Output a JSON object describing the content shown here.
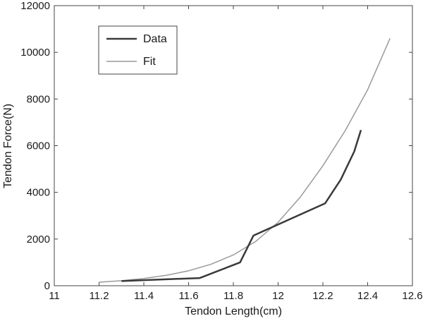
{
  "chart_data": {
    "type": "line",
    "xlabel": "Tendon Length(cm)",
    "ylabel": "Tendon Force(N)",
    "xlim": [
      11,
      12.6
    ],
    "ylim": [
      0,
      12000
    ],
    "x_ticks": [
      "11",
      "11.2",
      "11.4",
      "11.6",
      "11.8",
      "12",
      "12.2",
      "12.4",
      "12.6"
    ],
    "y_ticks": [
      "0",
      "2000",
      "4000",
      "6000",
      "8000",
      "10000",
      "12000"
    ],
    "grid": false,
    "legend_position": "top-left",
    "series": [
      {
        "name": "Data",
        "color": "#3a3a3a",
        "points": [
          [
            11.3,
            200
          ],
          [
            11.65,
            330
          ],
          [
            11.83,
            1000
          ],
          [
            11.89,
            2150
          ],
          [
            12.21,
            3530
          ],
          [
            12.28,
            4550
          ],
          [
            12.34,
            5750
          ],
          [
            12.37,
            6670
          ]
        ]
      },
      {
        "name": "Fit",
        "color": "#9a9a9a",
        "points": [
          [
            11.2,
            150
          ],
          [
            11.3,
            215
          ],
          [
            11.4,
            310
          ],
          [
            11.5,
            445
          ],
          [
            11.6,
            640
          ],
          [
            11.7,
            920
          ],
          [
            11.8,
            1320
          ],
          [
            11.9,
            1900
          ],
          [
            12.0,
            2720
          ],
          [
            12.1,
            3810
          ],
          [
            12.2,
            5140
          ],
          [
            12.3,
            6650
          ],
          [
            12.4,
            8400
          ],
          [
            12.5,
            10600
          ]
        ]
      }
    ]
  }
}
